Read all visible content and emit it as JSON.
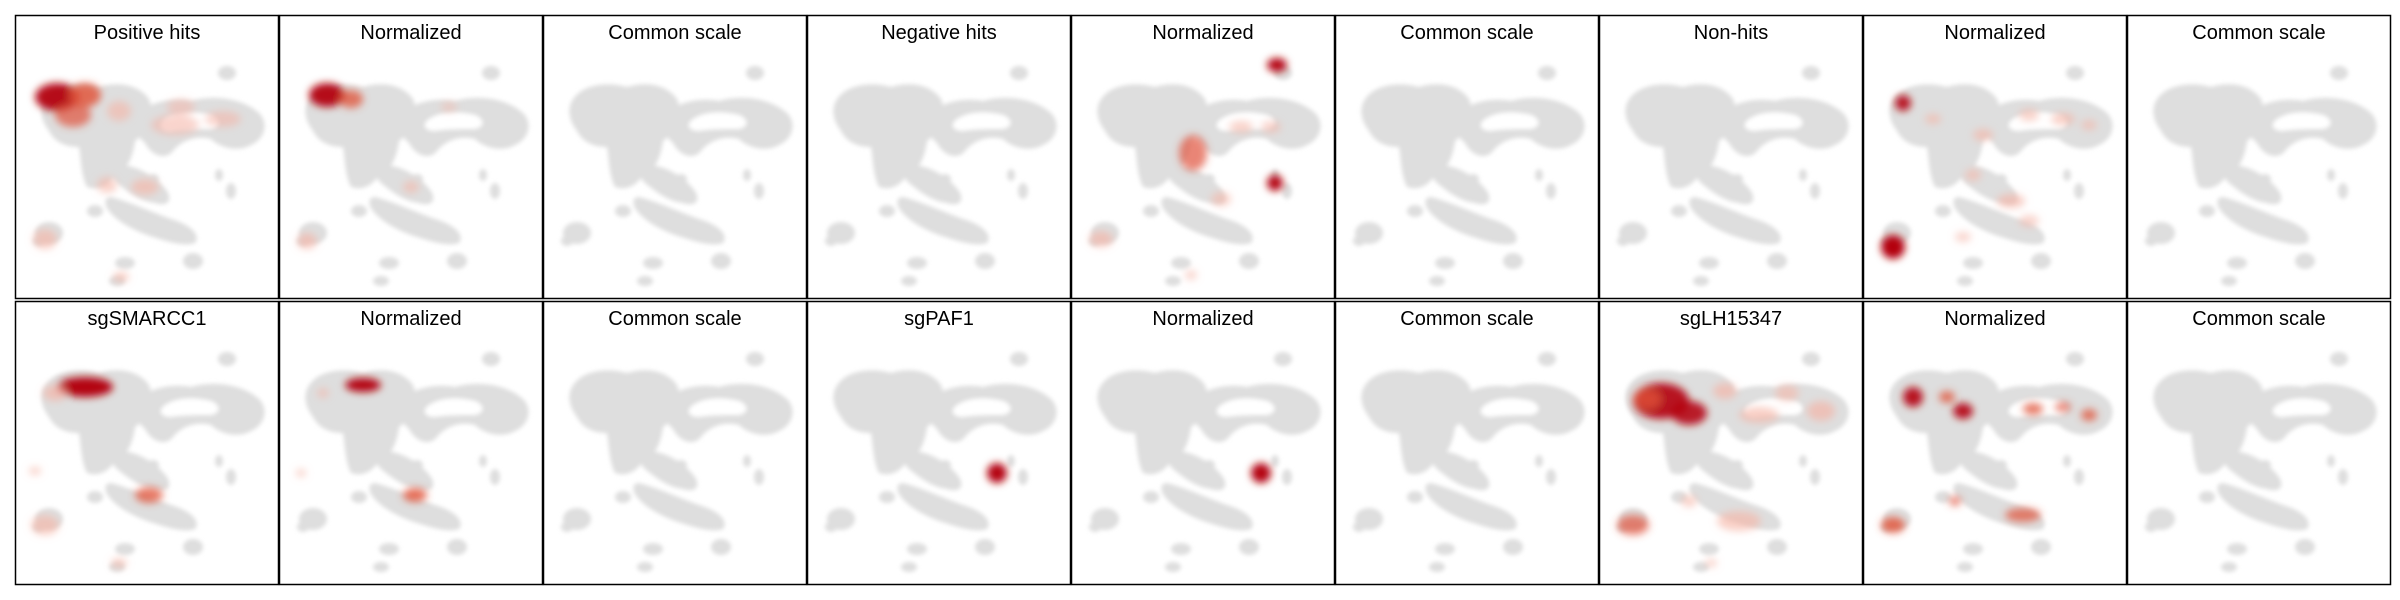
{
  "figure": {
    "rows": [
      {
        "panels": [
          {
            "title": "Positive hits",
            "kind": "raw",
            "signal": "positive"
          },
          {
            "title": "Normalized",
            "kind": "normalized",
            "signal": "positive"
          },
          {
            "title": "Common scale",
            "kind": "common",
            "signal": "positive"
          },
          {
            "title": "Negative hits",
            "kind": "raw",
            "signal": "negative"
          },
          {
            "title": "Normalized",
            "kind": "normalized",
            "signal": "negative"
          },
          {
            "title": "Common scale",
            "kind": "common",
            "signal": "negative"
          },
          {
            "title": "Non-hits",
            "kind": "raw",
            "signal": "nonhit"
          },
          {
            "title": "Normalized",
            "kind": "normalized",
            "signal": "nonhit"
          },
          {
            "title": "Common scale",
            "kind": "common",
            "signal": "nonhit"
          }
        ]
      },
      {
        "panels": [
          {
            "title": "sgSMARCC1",
            "kind": "raw",
            "signal": "smarcc1"
          },
          {
            "title": "Normalized",
            "kind": "normalized",
            "signal": "smarcc1"
          },
          {
            "title": "Common scale",
            "kind": "common",
            "signal": "smarcc1"
          },
          {
            "title": "sgPAF1",
            "kind": "raw",
            "signal": "paf1"
          },
          {
            "title": "Normalized",
            "kind": "normalized",
            "signal": "paf1"
          },
          {
            "title": "Common scale",
            "kind": "common",
            "signal": "paf1"
          },
          {
            "title": "sgLH15347",
            "kind": "raw",
            "signal": "lh15347"
          },
          {
            "title": "Normalized",
            "kind": "normalized",
            "signal": "lh15347"
          },
          {
            "title": "Common scale",
            "kind": "common",
            "signal": "lh15347"
          }
        ]
      }
    ],
    "colors": {
      "background_cells": "#dedede",
      "density_high": "#b3000d",
      "density_mid": "#e0533a",
      "density_low": "#f5b3a5",
      "panel_border": "#000000"
    }
  }
}
